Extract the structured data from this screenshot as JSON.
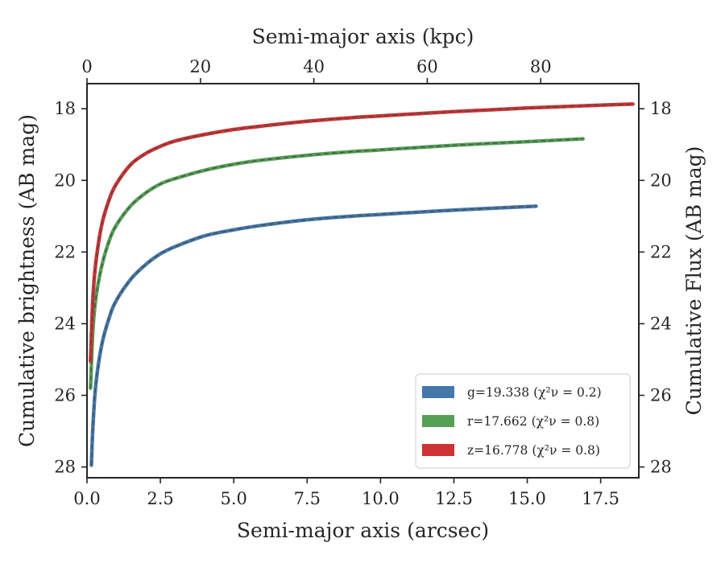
{
  "chart_data": {
    "type": "line",
    "xlabel": "Semi-major axis (arcsec)",
    "ylabel": "Cumulative brightness (AB mag)",
    "top_xlabel": "Semi-major axis (kpc)",
    "right_ylabel": "Cumulative Flux (AB mag)",
    "xlim": [
      0,
      18.8
    ],
    "ylim": [
      28.3,
      17.3
    ],
    "top_xlim": [
      0,
      97.3
    ],
    "y_inverted": true,
    "grid": false,
    "legend_position": "lower-right",
    "x_ticks": [
      "0.0",
      "2.5",
      "5.0",
      "7.5",
      "10.0",
      "12.5",
      "15.0",
      "17.5"
    ],
    "x_tick_values": [
      0,
      2.5,
      5,
      7.5,
      10,
      12.5,
      15,
      17.5
    ],
    "top_x_ticks": [
      "0",
      "20",
      "40",
      "60",
      "80"
    ],
    "top_x_tick_values": [
      0,
      20,
      40,
      60,
      80
    ],
    "y_ticks": [
      "18",
      "20",
      "22",
      "24",
      "26",
      "28"
    ],
    "y_tick_values": [
      18,
      20,
      22,
      24,
      26,
      28
    ],
    "right_y_ticks": [
      "18",
      "20",
      "22",
      "24",
      "26",
      "28"
    ],
    "series": [
      {
        "name": "g=19.338",
        "chi": "(χ²ν = 0.2)",
        "color": "#4477aa",
        "x": [
          0.15,
          0.2,
          0.3,
          0.5,
          0.75,
          1.0,
          1.5,
          2.0,
          2.5,
          3.0,
          4.0,
          5.0,
          6.0,
          7.5,
          9.0,
          10.0,
          12.5,
          15.3
        ],
        "y": [
          27.95,
          26.9,
          25.7,
          24.6,
          23.85,
          23.35,
          22.75,
          22.35,
          22.05,
          21.85,
          21.55,
          21.38,
          21.25,
          21.1,
          21.0,
          20.95,
          20.83,
          20.72
        ]
      },
      {
        "name": "r=17.662",
        "chi": "(χ²ν = 0.8)",
        "color": "#55a055",
        "x": [
          0.12,
          0.2,
          0.3,
          0.5,
          0.75,
          1.0,
          1.5,
          2.0,
          2.5,
          3.0,
          4.0,
          5.0,
          6.0,
          7.5,
          9.0,
          10.0,
          12.5,
          15.0,
          16.9
        ],
        "y": [
          25.8,
          24.2,
          23.3,
          22.4,
          21.7,
          21.25,
          20.7,
          20.35,
          20.1,
          19.95,
          19.72,
          19.55,
          19.43,
          19.3,
          19.2,
          19.15,
          19.02,
          18.92,
          18.84
        ]
      },
      {
        "name": "z=16.778",
        "chi": "(χ²ν = 0.8)",
        "color": "#cc3333",
        "x": [
          0.12,
          0.2,
          0.3,
          0.5,
          0.75,
          1.0,
          1.5,
          2.0,
          2.5,
          3.0,
          4.0,
          5.0,
          6.0,
          7.5,
          9.0,
          10.0,
          12.5,
          15.0,
          17.5,
          18.6
        ],
        "y": [
          25.05,
          23.3,
          22.3,
          21.25,
          20.55,
          20.1,
          19.55,
          19.25,
          19.05,
          18.9,
          18.72,
          18.58,
          18.48,
          18.35,
          18.25,
          18.2,
          18.08,
          17.98,
          17.9,
          17.87
        ]
      }
    ]
  }
}
